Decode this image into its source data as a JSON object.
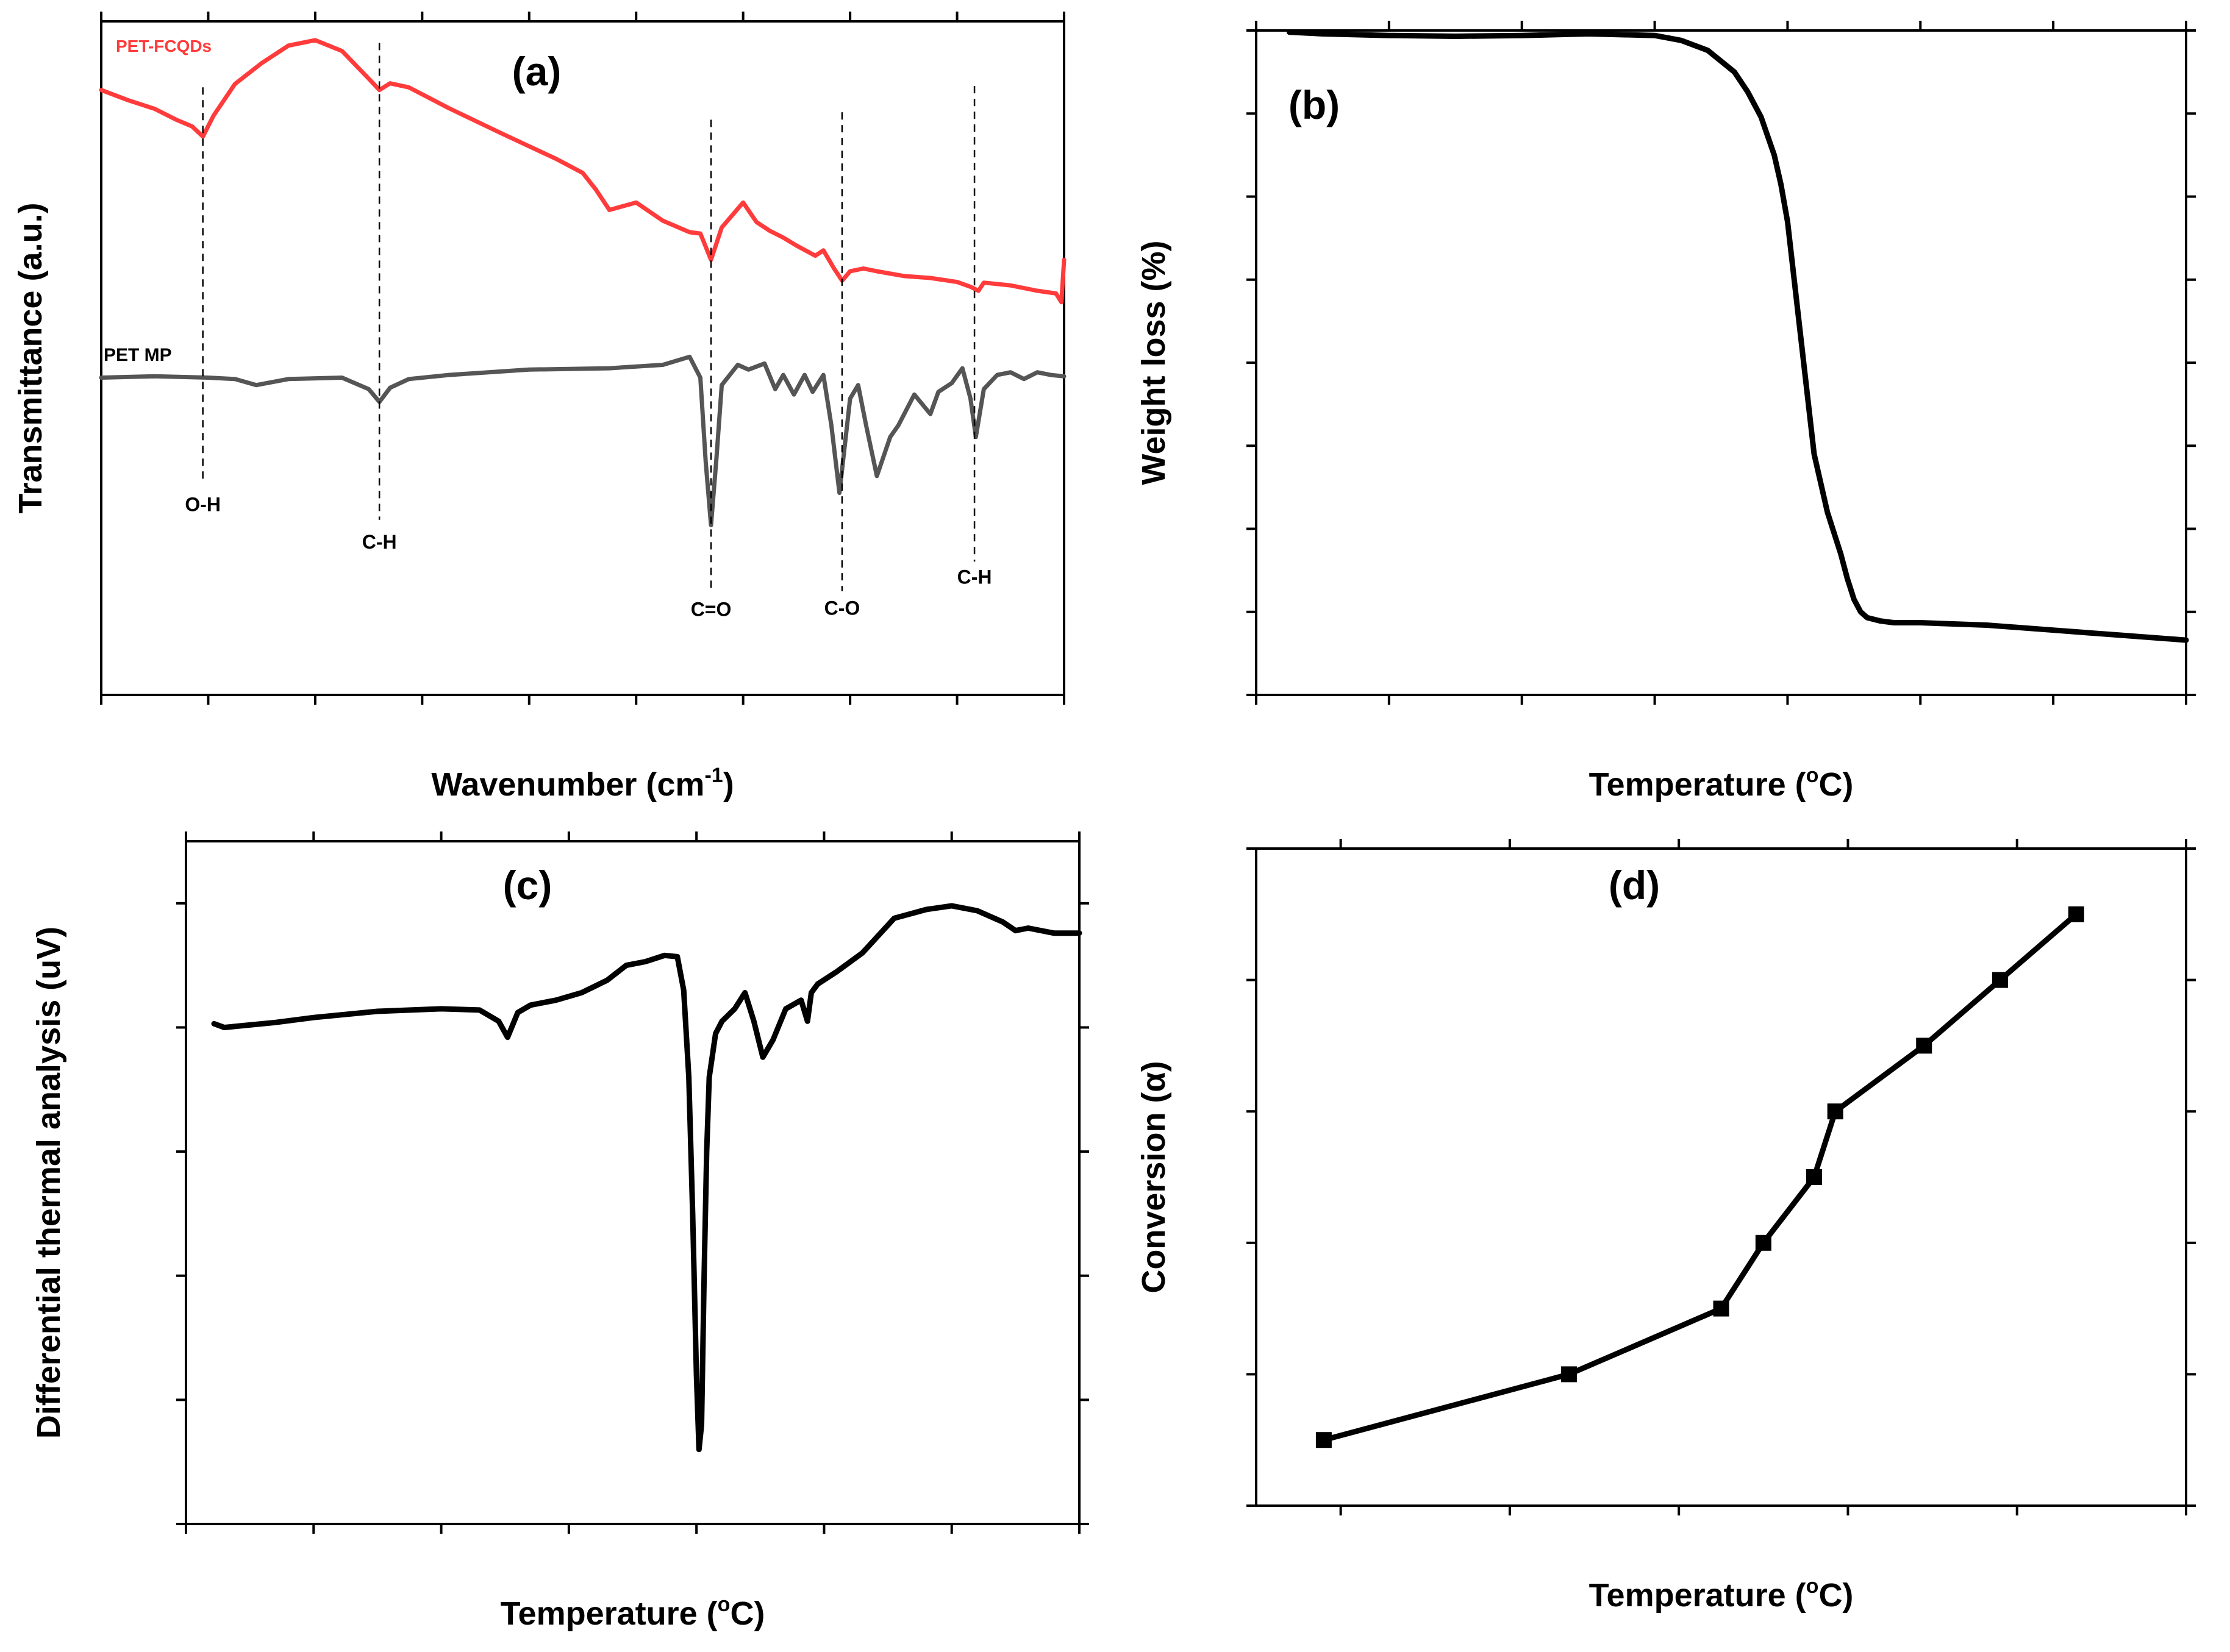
{
  "chart_data": [
    {
      "panel": "(a)",
      "type": "line",
      "title": "(a)",
      "xlabel": "Wavenumber (cm",
      "xlabel_sup": "-1",
      "xlabel_end": ")",
      "ylabel": "Transmittance (a.u.)",
      "xlim": [
        4000,
        400
      ],
      "ylim": [
        0,
        100
      ],
      "x_reversed": true,
      "y_ticks_shown": false,
      "x_ticks": [
        4000,
        3600,
        3200,
        2800,
        2400,
        2000,
        1600,
        1200,
        800,
        400
      ],
      "series": [
        {
          "name": "PET-FCQDs",
          "color": "#ff3b3b",
          "x": [
            4000,
            3900,
            3800,
            3720,
            3660,
            3620,
            3580,
            3500,
            3400,
            3300,
            3200,
            3100,
            3000,
            2960,
            2920,
            2850,
            2700,
            2500,
            2300,
            2200,
            2150,
            2100,
            2000,
            1900,
            1800,
            1760,
            1720,
            1680,
            1600,
            1550,
            1500,
            1450,
            1400,
            1330,
            1300,
            1260,
            1230,
            1200,
            1150,
            1100,
            1000,
            900,
            800,
            750,
            720,
            700,
            600,
            500,
            430,
            410,
            400
          ],
          "y": [
            89.8,
            88.3,
            87.0,
            85.4,
            84.4,
            82.9,
            86.0,
            90.7,
            93.8,
            96.4,
            97.2,
            95.6,
            91.5,
            89.8,
            90.8,
            90.2,
            87.1,
            83.3,
            79.6,
            77.5,
            75.0,
            72.0,
            73.1,
            70.4,
            68.7,
            68.5,
            64.6,
            69.4,
            73.1,
            70.2,
            68.9,
            67.9,
            66.7,
            65.2,
            66.0,
            63.3,
            61.5,
            62.9,
            63.3,
            62.9,
            62.2,
            61.9,
            61.3,
            60.6,
            60.0,
            61.2,
            60.8,
            60.0,
            59.6,
            58.3,
            64.6
          ]
        },
        {
          "name": "PET MP",
          "color": "#555555",
          "x": [
            4000,
            3800,
            3600,
            3500,
            3420,
            3300,
            3100,
            3000,
            2960,
            2920,
            2850,
            2700,
            2400,
            2100,
            1900,
            1800,
            1760,
            1740,
            1720,
            1700,
            1680,
            1620,
            1580,
            1520,
            1480,
            1450,
            1410,
            1370,
            1340,
            1300,
            1270,
            1240,
            1200,
            1170,
            1140,
            1100,
            1050,
            1020,
            960,
            900,
            870,
            820,
            780,
            750,
            730,
            700,
            650,
            600,
            550,
            500,
            450,
            400
          ],
          "y": [
            47.1,
            47.3,
            47.1,
            46.9,
            46.0,
            46.9,
            47.1,
            45.4,
            43.5,
            45.6,
            46.9,
            47.5,
            48.3,
            48.5,
            49.0,
            50.2,
            47.1,
            34.6,
            25.2,
            35.0,
            46.0,
            49.0,
            48.3,
            49.2,
            45.4,
            47.5,
            44.6,
            47.5,
            45.0,
            47.5,
            40.0,
            30.0,
            44.0,
            46.0,
            40.0,
            32.5,
            38.3,
            40.0,
            44.6,
            41.7,
            45.0,
            46.3,
            48.5,
            44.0,
            38.3,
            45.4,
            47.5,
            47.9,
            46.9,
            47.9,
            47.5,
            47.3
          ]
        }
      ],
      "markers": [
        {
          "label": "O-H",
          "x": 3620,
          "line_top": 90.2,
          "line_bottom": 31.5,
          "label_y": 27.3
        },
        {
          "label": "C-H",
          "x": 2960,
          "line_top": 96.8,
          "line_bottom": 26.0,
          "label_y": 21.7
        },
        {
          "label": "C=O",
          "x": 1720,
          "line_top": 85.4,
          "line_bottom": 15.4,
          "label_y": 11.7
        },
        {
          "label": "C-O",
          "x": 1230,
          "line_top": 86.5,
          "line_bottom": 15.4,
          "label_y": 11.9
        },
        {
          "label": "C-H",
          "x": 735,
          "line_top": 90.4,
          "line_bottom": 19.8,
          "label_y": 16.5
        }
      ],
      "series_labels": [
        {
          "text": "PET-FCQDs",
          "color": "#ff3b3b"
        },
        {
          "text": "PET MP",
          "color": "#000000"
        }
      ]
    },
    {
      "panel": "(b)",
      "type": "line",
      "title": "(b)",
      "xlabel": "Temperature (",
      "xlabel_sup": "o",
      "xlabel_end": "C)",
      "ylabel": "Weight loss (%)",
      "xlim": [
        0,
        700
      ],
      "ylim": [
        20,
        100
      ],
      "x_ticks": [
        0,
        100,
        200,
        300,
        400,
        500,
        600,
        700
      ],
      "y_ticks": [
        20,
        30,
        40,
        50,
        60,
        70,
        80,
        90,
        100
      ],
      "series": [
        {
          "name": "",
          "color": "#000000",
          "x": [
            25,
            50,
            100,
            150,
            200,
            250,
            300,
            320,
            340,
            360,
            370,
            380,
            390,
            395,
            400,
            405,
            410,
            415,
            420,
            430,
            440,
            445,
            450,
            455,
            460,
            470,
            480,
            500,
            550,
            600,
            650,
            700
          ],
          "y": [
            99.8,
            99.6,
            99.4,
            99.3,
            99.4,
            99.6,
            99.4,
            98.8,
            97.6,
            95.0,
            92.6,
            89.6,
            85.0,
            81.5,
            77.0,
            70.0,
            63.0,
            56.0,
            49.0,
            42.0,
            37.0,
            34.0,
            31.5,
            30.0,
            29.3,
            28.9,
            28.7,
            28.7,
            28.4,
            27.8,
            27.2,
            26.6
          ]
        }
      ]
    },
    {
      "panel": "(c)",
      "type": "line",
      "title": "(c)",
      "xlabel": "Temperature (",
      "xlabel_sup": "o",
      "xlabel_end": "C)",
      "ylabel": "Differential thermal analysis (uV)",
      "xlim": [
        0,
        700
      ],
      "ylim": [
        -400,
        150
      ],
      "x_ticks": [
        0,
        100,
        200,
        300,
        400,
        500,
        600,
        700
      ],
      "y_ticks": [
        -400,
        -300,
        -200,
        -100,
        0,
        100
      ],
      "series": [
        {
          "name": "",
          "color": "#000000",
          "x": [
            22,
            30,
            50,
            70,
            100,
            150,
            200,
            230,
            245,
            252,
            260,
            270,
            290,
            310,
            330,
            345,
            360,
            375,
            385,
            390,
            394,
            397,
            400,
            402,
            404,
            406,
            408,
            410,
            415,
            420,
            430,
            438,
            445,
            452,
            460,
            470,
            482,
            487,
            490,
            495,
            510,
            530,
            555,
            580,
            600,
            620,
            640,
            650,
            660,
            680,
            700
          ],
          "y": [
            3,
            0,
            2,
            4,
            8,
            13,
            15,
            14,
            5,
            -8,
            12,
            18,
            22,
            28,
            38,
            50,
            53,
            58,
            57,
            30,
            -40,
            -150,
            -280,
            -340,
            -320,
            -200,
            -100,
            -40,
            -5,
            5,
            15,
            28,
            5,
            -24,
            -10,
            15,
            22,
            5,
            28,
            35,
            45,
            60,
            88,
            95,
            98,
            94,
            85,
            78,
            80,
            76,
            76
          ]
        }
      ]
    },
    {
      "panel": "(d)",
      "type": "line",
      "title": "(d)",
      "xlabel": "Temperature (",
      "xlabel_sup": "o",
      "xlabel_end": "C)",
      "ylabel": "Conversion (α)",
      "xlim": [
        350,
        460
      ],
      "ylim": [
        0.0,
        1.0
      ],
      "x_ticks": [
        360,
        380,
        400,
        420,
        440,
        460
      ],
      "y_ticks": [
        "0.0",
        "0.2",
        "0.4",
        "0.6",
        "0.8",
        "1.0"
      ],
      "markers": "square",
      "series": [
        {
          "name": "",
          "color": "#000000",
          "x": [
            358,
            387,
            405,
            410,
            416,
            418.5,
            429,
            438,
            447
          ],
          "y": [
            0.1,
            0.2,
            0.3,
            0.4,
            0.5,
            0.6,
            0.7,
            0.8,
            0.9
          ]
        }
      ]
    }
  ]
}
